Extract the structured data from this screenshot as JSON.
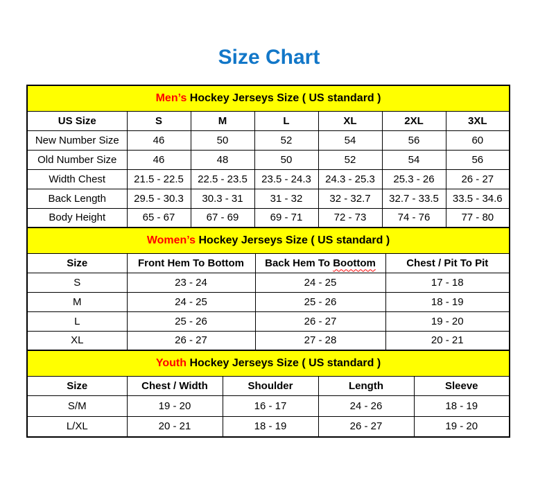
{
  "page_title": "Size Chart",
  "colors": {
    "title_blue": "#1277c8",
    "band_yellow": "#ffff00",
    "accent_red": "#ff0000",
    "border_black": "#000000"
  },
  "chart_data": [
    {
      "type": "table",
      "id": "mens",
      "title_highlight": "Men’s",
      "title_rest": "Hockey Jerseys Size ( US standard )",
      "columns": [
        "US Size",
        "S",
        "M",
        "L",
        "XL",
        "2XL",
        "3XL"
      ],
      "rows": [
        {
          "label": "New Number Size",
          "values": [
            "46",
            "50",
            "52",
            "54",
            "56",
            "60"
          ]
        },
        {
          "label": "Old Number Size",
          "values": [
            "46",
            "48",
            "50",
            "52",
            "54",
            "56"
          ]
        },
        {
          "label": "Width Chest",
          "values": [
            "21.5 - 22.5",
            "22.5 - 23.5",
            "23.5 - 24.3",
            "24.3 - 25.3",
            "25.3 - 26",
            "26 - 27"
          ]
        },
        {
          "label": "Back Length",
          "values": [
            "29.5 - 30.3",
            "30.3 - 31",
            "31 - 32",
            "32 - 32.7",
            "32.7 - 33.5",
            "33.5 - 34.6"
          ]
        },
        {
          "label": "Body Height",
          "values": [
            "65 - 67",
            "67 - 69",
            "69 - 71",
            "72 - 73",
            "74 - 76",
            "77 - 80"
          ]
        }
      ]
    },
    {
      "type": "table",
      "id": "womens",
      "title_highlight": "Women’s",
      "title_rest": "Hockey Jerseys Size ( US standard )",
      "columns": [
        "Size",
        "Front Hem To Bottom",
        "Back Hem To Boottom",
        "Chest / Pit To Pit"
      ],
      "col2_text": "Back Hem To",
      "col2_misspelled_word": "Boottom",
      "rows": [
        {
          "label": "S",
          "values": [
            "23 - 24",
            "24 - 25",
            "17 - 18"
          ]
        },
        {
          "label": "M",
          "values": [
            "24 - 25",
            "25 - 26",
            "18 - 19"
          ]
        },
        {
          "label": "L",
          "values": [
            "25 - 26",
            "26 - 27",
            "19 - 20"
          ]
        },
        {
          "label": "XL",
          "values": [
            "26 - 27",
            "27 - 28",
            "20 - 21"
          ]
        }
      ]
    },
    {
      "type": "table",
      "id": "youth",
      "title_highlight": "Youth",
      "title_rest": "Hockey Jerseys Size ( US standard )",
      "columns": [
        "Size",
        "Chest / Width",
        "Shoulder",
        "Length",
        "Sleeve"
      ],
      "rows": [
        {
          "label": "S/M",
          "values": [
            "19 - 20",
            "16 - 17",
            "24 - 26",
            "18 - 19"
          ]
        },
        {
          "label": "L/XL",
          "values": [
            "20 - 21",
            "18 - 19",
            "26 - 27",
            "19 - 20"
          ]
        }
      ]
    }
  ]
}
